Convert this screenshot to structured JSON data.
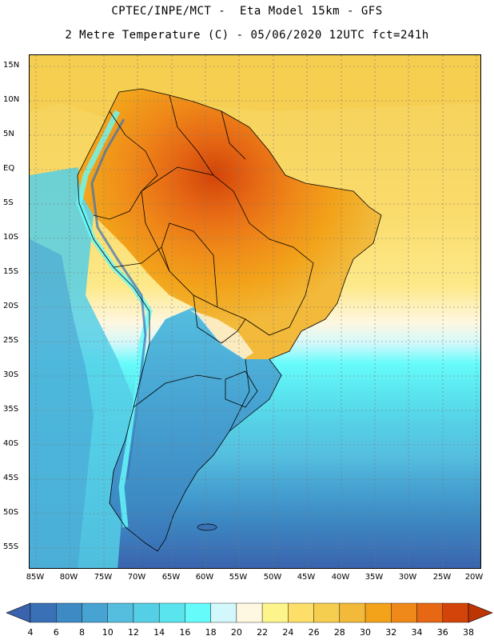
{
  "header": {
    "line1": "CPTEC/INPE/MCT -  Eta Model 15km - GFS",
    "line2": "2 Metre Temperature (C) - 05/06/2020 12UTC fct=241h"
  },
  "map": {
    "lat_labels": [
      "15N",
      "10N",
      "5N",
      "EQ",
      "5S",
      "10S",
      "15S",
      "20S",
      "25S",
      "30S",
      "35S",
      "40S",
      "45S",
      "50S",
      "55S"
    ],
    "lon_labels": [
      "85W",
      "80W",
      "75W",
      "70W",
      "65W",
      "60W",
      "55W",
      "50W",
      "45W",
      "40W",
      "35W",
      "30W",
      "25W",
      "20W"
    ],
    "extent": {
      "lon_min": -86.4,
      "lon_max": -19.6,
      "lat_min": -57.8,
      "lat_max": 17.2
    }
  },
  "legend": {
    "levels": [
      "4",
      "6",
      "8",
      "10",
      "12",
      "14",
      "16",
      "18",
      "20",
      "22",
      "24",
      "26",
      "28",
      "30",
      "32",
      "34",
      "36",
      "38"
    ],
    "colors": [
      "#3a63ad",
      "#3a71b6",
      "#3d8ac4",
      "#47a3d2",
      "#55bedf",
      "#55cfe6",
      "#5ae4ee",
      "#66fbfb",
      "#d3f8fb",
      "#fef7e1",
      "#fdf58c",
      "#fcde69",
      "#f5cd4f",
      "#f2b93a",
      "#f2a31a",
      "#ef8919",
      "#e66814",
      "#d24409",
      "#bd3405"
    ]
  }
}
